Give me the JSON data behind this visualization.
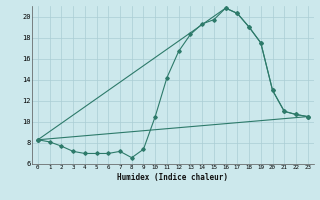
{
  "title": "",
  "xlabel": "Humidex (Indice chaleur)",
  "bg_color": "#cce8ec",
  "line_color": "#2d7a6a",
  "grid_color": "#aacdd4",
  "xlim": [
    -0.5,
    23.5
  ],
  "ylim": [
    6,
    21
  ],
  "xticks": [
    0,
    1,
    2,
    3,
    4,
    5,
    6,
    7,
    8,
    9,
    10,
    11,
    12,
    13,
    14,
    15,
    16,
    17,
    18,
    19,
    20,
    21,
    22,
    23
  ],
  "yticks": [
    6,
    8,
    10,
    12,
    14,
    16,
    18,
    20
  ],
  "line1_x": [
    0,
    1,
    2,
    3,
    4,
    5,
    6,
    7,
    8,
    9,
    10,
    11,
    12,
    13,
    14,
    15,
    16,
    17,
    18,
    19,
    20,
    21,
    22,
    23
  ],
  "line1_y": [
    8.3,
    8.1,
    7.7,
    7.2,
    7.0,
    7.0,
    7.0,
    7.2,
    6.6,
    7.4,
    10.5,
    14.2,
    16.7,
    18.3,
    19.3,
    19.7,
    20.8,
    20.3,
    19.0,
    17.5,
    13.0,
    11.0,
    10.7,
    10.5
  ],
  "line2_x": [
    0,
    16,
    17,
    18,
    19,
    20,
    21,
    22,
    23
  ],
  "line2_y": [
    8.3,
    20.8,
    20.3,
    19.0,
    17.5,
    13.0,
    11.0,
    10.7,
    10.5
  ],
  "line3_x": [
    0,
    23
  ],
  "line3_y": [
    8.3,
    10.5
  ]
}
